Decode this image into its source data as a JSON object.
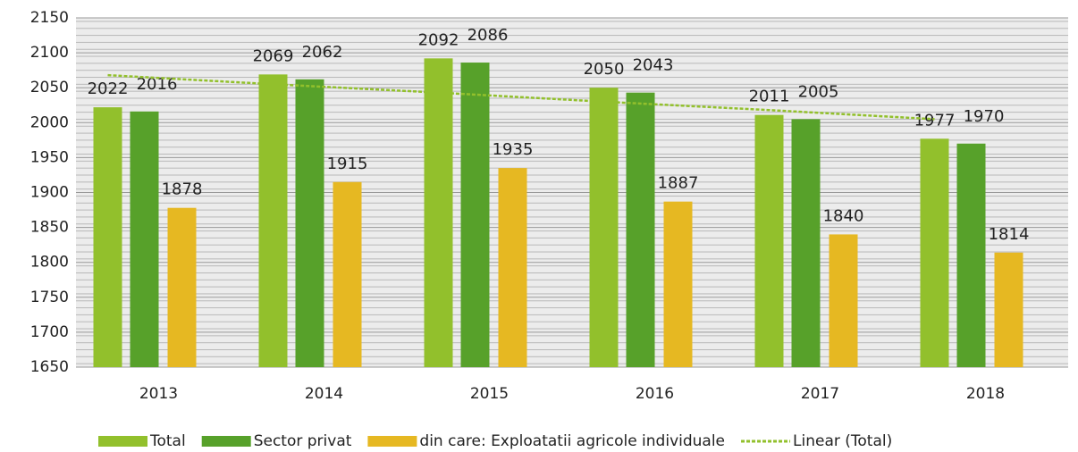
{
  "chart_data": {
    "type": "bar",
    "categories": [
      "2013",
      "2014",
      "2015",
      "2016",
      "2017",
      "2018"
    ],
    "series": [
      {
        "name": "Total",
        "color": "#92c02c",
        "values": [
          2022,
          2069,
          2092,
          2050,
          2011,
          1977
        ]
      },
      {
        "name": "Sector privat",
        "color": "#57a12a",
        "values": [
          2016,
          2062,
          2086,
          2043,
          2005,
          1970
        ]
      },
      {
        "name": "din care: Exploatatii agricole individuale",
        "color": "#e6b822",
        "values": [
          1878,
          1915,
          1935,
          1887,
          1840,
          1814
        ]
      }
    ],
    "trendline": {
      "name": "Linear (Total)",
      "color": "#92c02c",
      "values": [
        2068,
        2055,
        2043,
        2030,
        2018,
        2005
      ]
    },
    "ylim": [
      1650,
      2150
    ],
    "yticks": [
      1650,
      1700,
      1750,
      1800,
      1850,
      1900,
      1950,
      2000,
      2050,
      2100,
      2150
    ],
    "grid": true,
    "legend": "bottom"
  }
}
